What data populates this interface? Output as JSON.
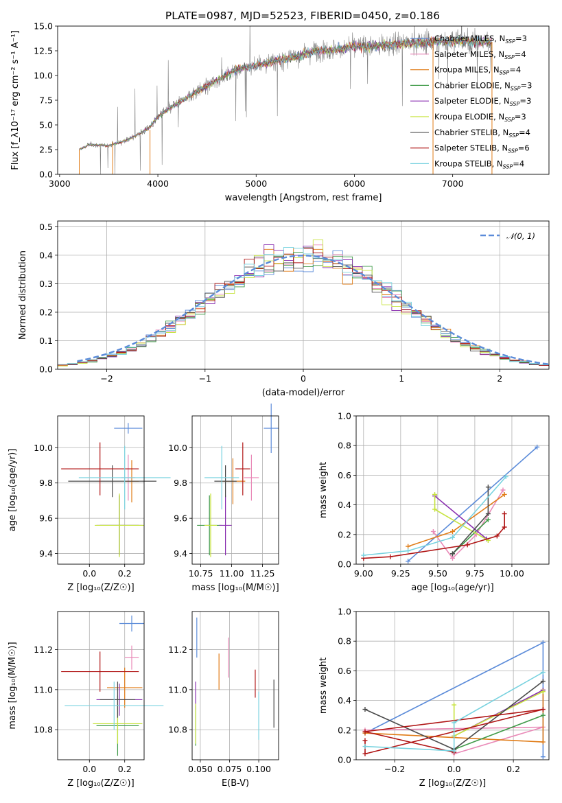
{
  "title": "PLATE=0987, MJD=52523, FIBERID=0450, z=0.186",
  "models": [
    {
      "name": "Chabrier MILES",
      "nssp": "3",
      "color": "#5b8bd9"
    },
    {
      "name": "Salpeter MILES",
      "nssp": "4",
      "color": "#e989b7"
    },
    {
      "name": "Kroupa MILES",
      "nssp": "4",
      "color": "#e07b16"
    },
    {
      "name": "Chabrier ELODIE",
      "nssp": "3",
      "color": "#3f9a48"
    },
    {
      "name": "Salpeter ELODIE",
      "nssp": "3",
      "color": "#8a2fb0"
    },
    {
      "name": "Kroupa ELODIE",
      "nssp": "3",
      "color": "#c6e33e"
    },
    {
      "name": "Chabrier STELIB",
      "nssp": "4",
      "color": "#4a4a4a"
    },
    {
      "name": "Salpeter STELIB",
      "nssp": "6",
      "color": "#b01515"
    },
    {
      "name": "Kroupa STELIB",
      "nssp": "4",
      "color": "#78d2df"
    }
  ],
  "legend_nssp_prefix": "N",
  "legend_nssp_sub": "SSP",
  "legend_gauss": "𝒩(0, 1)",
  "chart_data": [
    {
      "id": "spectrum",
      "type": "line",
      "xlabel": "wavelength [Angstrom, rest frame]",
      "ylabel": "Flux [f_λ10⁻¹⁷ erg cm⁻² s⁻¹ A⁻¹]",
      "xlim": [
        2980,
        7980
      ],
      "ylim": [
        0,
        15
      ],
      "xticks": [
        3000,
        4000,
        5000,
        6000,
        7000
      ],
      "yticks": [
        0.0,
        2.5,
        5.0,
        7.5,
        10.0,
        12.5,
        15.0
      ],
      "data_start": 3200,
      "data_end": 7400,
      "continuum": {
        "x": [
          3200,
          3300,
          3500,
          3700,
          3900,
          4000,
          4200,
          4400,
          4600,
          4800,
          5000,
          5200,
          5400,
          5600,
          5800,
          6000,
          6200,
          6400,
          6600,
          6800,
          7000,
          7200,
          7400
        ],
        "y": [
          2.5,
          3.0,
          2.9,
          3.5,
          4.6,
          5.8,
          7.2,
          8.4,
          9.5,
          10.6,
          11.0,
          11.5,
          11.9,
          12.5,
          12.6,
          12.9,
          13.0,
          13.2,
          13.3,
          13.4,
          13.5,
          13.4,
          13.4
        ]
      },
      "series_color": "#808080",
      "legend": "top-right"
    },
    {
      "id": "residuals",
      "type": "histogram",
      "xlabel": "(data-model)/error",
      "ylabel": "Normed distribution",
      "xlim": [
        -2.5,
        2.5
      ],
      "ylim": [
        0,
        0.52
      ],
      "xticks": [
        -2,
        -1,
        0,
        1,
        2
      ],
      "yticks": [
        0.0,
        0.1,
        0.2,
        0.3,
        0.4,
        0.5
      ],
      "bin_width": 0.1,
      "bin_start": -2.5,
      "gaussian": {
        "mean": 0,
        "sigma": 1,
        "color": "#5b8bd9",
        "style": "dashed"
      },
      "legend": "top-right"
    },
    {
      "id": "age-vs-Z",
      "type": "errorbar",
      "xlabel": "Z [log₁₀(Z/Z☉)]",
      "ylabel": "age  [log₁₀(age/yr)]",
      "xlim": [
        -0.18,
        0.31
      ],
      "ylim": [
        9.34,
        10.18
      ],
      "xticks": [
        0.0,
        0.2
      ],
      "yticks": [
        9.4,
        9.6,
        9.8,
        10.0
      ],
      "points": [
        {
          "model": 0,
          "x": 0.22,
          "xerr": 0.08,
          "y": 10.11,
          "yerr": 0.03
        },
        {
          "model": 1,
          "x": 0.22,
          "xerr": 0.04,
          "y": 9.83,
          "yerr": 0.13
        },
        {
          "model": 2,
          "x": 0.24,
          "xerr": 0.04,
          "y": 9.81,
          "yerr": 0.12
        },
        {
          "model": 3,
          "x": 0.17,
          "xerr": 0.11,
          "y": 9.56,
          "yerr": 0.17
        },
        {
          "model": 4,
          "x": 0.17,
          "xerr": 0.13,
          "y": 9.56,
          "yerr": 0.17
        },
        {
          "model": 5,
          "x": 0.17,
          "xerr": 0.14,
          "y": 9.56,
          "yerr": 0.18
        },
        {
          "model": 6,
          "x": 0.13,
          "xerr": 0.25,
          "y": 9.81,
          "yerr": 0.09
        },
        {
          "model": 7,
          "x": 0.06,
          "xerr": 0.22,
          "y": 9.88,
          "yerr": 0.15
        },
        {
          "model": 8,
          "x": 0.2,
          "xerr": 0.26,
          "y": 9.83,
          "yerr": 0.18
        }
      ]
    },
    {
      "id": "age-vs-mass",
      "type": "errorbar",
      "xlabel": "mass [log₁₀(M/M☉)]",
      "ylabel": "",
      "xlim": [
        10.68,
        11.38
      ],
      "ylim": [
        9.34,
        10.18
      ],
      "xticks": [
        10.75,
        11.0,
        11.25
      ],
      "yticks": [
        9.4,
        9.6,
        9.8,
        10.0
      ],
      "points": [
        {
          "model": 0,
          "x": 11.32,
          "xerr": 0.06,
          "y": 10.11,
          "yerr": 0.14
        },
        {
          "model": 1,
          "x": 11.16,
          "xerr": 0.06,
          "y": 9.83,
          "yerr": 0.13
        },
        {
          "model": 2,
          "x": 11.01,
          "xerr": 0.1,
          "y": 9.81,
          "yerr": 0.13
        },
        {
          "model": 3,
          "x": 10.82,
          "xerr": 0.1,
          "y": 9.56,
          "yerr": 0.17
        },
        {
          "model": 4,
          "x": 10.95,
          "xerr": 0.05,
          "y": 9.56,
          "yerr": 0.17
        },
        {
          "model": 5,
          "x": 10.83,
          "xerr": 0.05,
          "y": 9.56,
          "yerr": 0.18
        },
        {
          "model": 6,
          "x": 10.95,
          "xerr": 0.09,
          "y": 9.81,
          "yerr": 0.09
        },
        {
          "model": 7,
          "x": 11.09,
          "xerr": 0.06,
          "y": 9.88,
          "yerr": 0.15
        },
        {
          "model": 8,
          "x": 10.92,
          "xerr": 0.14,
          "y": 9.83,
          "yerr": 0.18
        }
      ]
    },
    {
      "id": "weight-vs-age",
      "type": "line",
      "xlabel": "age  [log₁₀(age/yr)]",
      "ylabel": "mass weight",
      "xlim": [
        8.95,
        10.25
      ],
      "ylim": [
        0,
        1
      ],
      "xticks": [
        9.0,
        9.25,
        9.5,
        9.75,
        10.0
      ],
      "yticks": [
        0.0,
        0.2,
        0.4,
        0.6,
        0.8,
        1.0
      ],
      "series": [
        {
          "model": 0,
          "points": [
            [
              9.3,
              0.02
            ],
            [
              10.17,
              0.79
            ]
          ]
        },
        {
          "model": 1,
          "points": [
            [
              9.47,
              0.22
            ],
            [
              9.6,
              0.04
            ],
            [
              9.76,
              0.2
            ],
            [
              9.94,
              0.5
            ]
          ]
        },
        {
          "model": 2,
          "points": [
            [
              9.3,
              0.12
            ],
            [
              9.6,
              0.22
            ],
            [
              9.95,
              0.47
            ]
          ]
        },
        {
          "model": 3,
          "points": [
            [
              9.6,
              0.07
            ],
            [
              9.84,
              0.3
            ]
          ]
        },
        {
          "model": 4,
          "points": [
            [
              9.48,
              0.46
            ],
            [
              9.83,
              0.17
            ]
          ]
        },
        {
          "model": 5,
          "points": [
            [
              9.48,
              0.47
            ],
            [
              9.48,
              0.37
            ],
            [
              9.84,
              0.16
            ]
          ]
        },
        {
          "model": 6,
          "points": [
            [
              9.6,
              0.07
            ],
            [
              9.84,
              0.34
            ],
            [
              9.84,
              0.52
            ]
          ]
        },
        {
          "model": 7,
          "points": [
            [
              9.0,
              0.04
            ],
            [
              9.18,
              0.05
            ],
            [
              9.7,
              0.13
            ],
            [
              9.9,
              0.19
            ],
            [
              9.95,
              0.25
            ],
            [
              9.95,
              0.34
            ]
          ]
        },
        {
          "model": 8,
          "points": [
            [
              9.0,
              0.06
            ],
            [
              9.3,
              0.09
            ],
            [
              9.6,
              0.18
            ],
            [
              9.96,
              0.59
            ]
          ]
        }
      ]
    },
    {
      "id": "mass-vs-Z",
      "type": "errorbar",
      "xlabel": "Z [log₁₀(Z/Z☉)]",
      "ylabel": "mass [log₁₀(M/M☉)]",
      "xlim": [
        -0.18,
        0.31
      ],
      "ylim": [
        10.65,
        11.39
      ],
      "xticks": [
        0.0,
        0.2
      ],
      "yticks": [
        10.8,
        11.0,
        11.2
      ],
      "points": [
        {
          "model": 0,
          "x": 0.24,
          "xerr": 0.07,
          "y": 11.33,
          "yerr": 0.04
        },
        {
          "model": 1,
          "x": 0.24,
          "xerr": 0.04,
          "y": 11.16,
          "yerr": 0.06
        },
        {
          "model": 2,
          "x": 0.2,
          "xerr": 0.1,
          "y": 11.01,
          "yerr": 0.1
        },
        {
          "model": 3,
          "x": 0.16,
          "xerr": 0.12,
          "y": 10.82,
          "yerr": 0.15
        },
        {
          "model": 4,
          "x": 0.17,
          "xerr": 0.13,
          "y": 10.95,
          "yerr": 0.08
        },
        {
          "model": 5,
          "x": 0.16,
          "xerr": 0.14,
          "y": 10.83,
          "yerr": 0.1
        },
        {
          "model": 6,
          "x": 0.16,
          "xerr": 0.1,
          "y": 10.95,
          "yerr": 0.09
        },
        {
          "model": 7,
          "x": 0.06,
          "xerr": 0.22,
          "y": 11.09,
          "yerr": 0.1
        },
        {
          "model": 8,
          "x": 0.14,
          "xerr": 0.28,
          "y": 10.92,
          "yerr": 0.12
        }
      ]
    },
    {
      "id": "mass-vs-EBV",
      "type": "errorbar",
      "xlabel": "E(B-V)",
      "ylabel": "",
      "xlim": [
        0.043,
        0.117
      ],
      "ylim": [
        10.65,
        11.39
      ],
      "xticks": [
        0.05,
        0.075,
        0.1
      ],
      "yticks": [
        10.8,
        11.0,
        11.2
      ],
      "points": [
        {
          "model": 0,
          "x": 0.047,
          "y": 11.26,
          "yerr": 0.1
        },
        {
          "model": 1,
          "x": 0.074,
          "y": 11.16,
          "yerr": 0.1
        },
        {
          "model": 2,
          "x": 0.066,
          "y": 11.09,
          "yerr": 0.09
        },
        {
          "model": 3,
          "x": 0.046,
          "y": 10.82,
          "yerr": 0.1
        },
        {
          "model": 4,
          "x": 0.046,
          "y": 10.97,
          "yerr": 0.07
        },
        {
          "model": 5,
          "x": 0.046,
          "y": 10.83,
          "yerr": 0.1
        },
        {
          "model": 6,
          "x": 0.113,
          "y": 10.93,
          "yerr": 0.12
        },
        {
          "model": 7,
          "x": 0.097,
          "y": 11.03,
          "yerr": 0.07
        },
        {
          "model": 8,
          "x": 0.1,
          "y": 10.87,
          "yerr": 0.12
        }
      ]
    },
    {
      "id": "weight-vs-Z",
      "type": "line",
      "xlabel": "Z [log₁₀(Z/Z☉)]",
      "ylabel": "mass weight",
      "xlim": [
        -0.33,
        0.32
      ],
      "ylim": [
        0,
        1
      ],
      "xticks": [
        -0.2,
        0.0,
        0.2
      ],
      "yticks": [
        0.0,
        0.2,
        0.4,
        0.6,
        0.8,
        1.0
      ],
      "series": [
        {
          "model": 0,
          "points": [
            [
              -0.3,
              0.18
            ],
            [
              0.3,
              0.79
            ],
            [
              0.3,
              0.02
            ]
          ]
        },
        {
          "model": 1,
          "points": [
            [
              -0.3,
              0.2
            ],
            [
              0.3,
              0.22
            ],
            [
              0.0,
              0.04
            ]
          ]
        },
        {
          "model": 2,
          "points": [
            [
              -0.3,
              0.18
            ],
            [
              0.3,
              0.12
            ],
            [
              0.3,
              0.47
            ]
          ]
        },
        {
          "model": 3,
          "points": [
            [
              0.0,
              0.07
            ],
            [
              0.3,
              0.3
            ]
          ]
        },
        {
          "model": 4,
          "points": [
            [
              0.0,
              0.16
            ],
            [
              0.3,
              0.47
            ]
          ]
        },
        {
          "model": 5,
          "points": [
            [
              0.0,
              0.37
            ],
            [
              0.0,
              0.16
            ],
            [
              0.3,
              0.46
            ]
          ]
        },
        {
          "model": 6,
          "points": [
            [
              -0.3,
              0.34
            ],
            [
              0.0,
              0.07
            ],
            [
              0.3,
              0.53
            ]
          ]
        },
        {
          "model": 7,
          "points": [
            [
              -0.3,
              0.13
            ],
            [
              -0.3,
              0.04
            ],
            [
              0.0,
              0.19
            ],
            [
              0.3,
              0.34
            ],
            [
              -0.3,
              0.19
            ],
            [
              0.0,
              0.05
            ]
          ]
        },
        {
          "model": 8,
          "points": [
            [
              -0.3,
              0.09
            ],
            [
              0.0,
              0.06
            ],
            [
              0.0,
              0.25
            ],
            [
              0.3,
              0.59
            ]
          ]
        }
      ]
    }
  ]
}
